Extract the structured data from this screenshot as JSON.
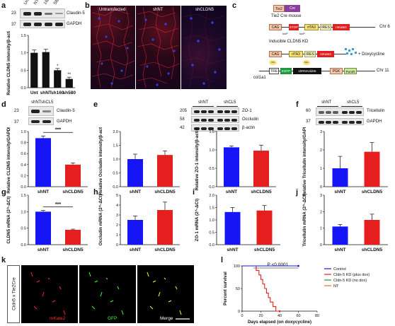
{
  "panels": {
    "a": {
      "label": "a",
      "lanes": [
        "Unt",
        "NT",
        "160",
        "580"
      ],
      "blot_rows": [
        {
          "kda": "23",
          "name": "Claudin-5"
        },
        {
          "kda": "37",
          "name": "GAPDH"
        }
      ]
    },
    "b": {
      "label": "b",
      "images": [
        "Untransfected",
        "shNT",
        "shCLDN5"
      ]
    },
    "c": {
      "label": "c",
      "tie2_text": "Tie2",
      "cre_text": "Cre",
      "header": "Tie2 Cre mouse",
      "row1": [
        "CAG",
        "STOP",
        "rtTA3",
        "IRES",
        "mKate2"
      ],
      "loxp": "loxP",
      "chr6": "Chr 6",
      "kd_header": "Inducible CLDN5 KD",
      "row2": [
        "CAG",
        "rtTA3",
        "IRES",
        "mKate2"
      ],
      "dox": "+ Doxycycline",
      "row3": [
        "TRE",
        "EGFP",
        "shRNAcldn5",
        "PGK",
        "PuroR"
      ],
      "col1a1": "col1a1",
      "chr11": "Chr 11",
      "rtta_bubble": "rtTA",
      "dox_bubble": "Dox"
    },
    "d": {
      "label": "d",
      "lanes": [
        "shNT",
        "shCL5"
      ],
      "blot_rows": [
        {
          "kda": "23",
          "name": "Claudin-5"
        },
        {
          "kda": "37",
          "name": "GAPDH"
        }
      ]
    },
    "e": {
      "label": "e",
      "groups": [
        "shNT",
        "shCL5"
      ],
      "blot_rows": [
        {
          "kda": "205",
          "name": "ZO-1"
        },
        {
          "kda": "58",
          "name": "Occludin"
        },
        {
          "kda": "42",
          "name": "β-actin"
        }
      ]
    },
    "f": {
      "label": "f",
      "groups": [
        "shNT",
        "shCL5"
      ],
      "blot_rows": [
        {
          "kda": "60",
          "name": "Tricellulin"
        },
        {
          "kda": "37",
          "name": "GAPDH"
        }
      ]
    },
    "k": {
      "label": "k",
      "side_label": "Cldn5 x Tie2Cre",
      "images": [
        "mKate2",
        "GFP",
        "Merge"
      ]
    }
  },
  "colors": {
    "blue": "#1515f5",
    "red": "#e51e1e",
    "green": "#1a9a3c"
  },
  "chart_data": [
    {
      "id": "a",
      "type": "bar",
      "categories": [
        "Unt",
        "shNT",
        "sh160",
        "sh580"
      ],
      "values": [
        1.0,
        1.02,
        0.5,
        0.25
      ],
      "errors": [
        0.08,
        0.08,
        0.05,
        0.05
      ],
      "bar_color": "#111111",
      "ylabel": "Relative CLDN5 intensity/β-actin",
      "ylim": [
        0,
        1.5
      ],
      "yticks": [
        "0.0",
        "0.5",
        "1.0",
        "1.5"
      ],
      "sig": [
        "",
        "",
        "*",
        "**"
      ]
    },
    {
      "id": "d",
      "type": "bar",
      "categories": [
        "shNT",
        "shCLDN5"
      ],
      "values": [
        0.88,
        0.4
      ],
      "errors": [
        0.04,
        0.03
      ],
      "colors": [
        "#1515f5",
        "#e51e1e"
      ],
      "ylabel": "Relative CLDN5 intensity/GAPDH",
      "ylim": [
        0,
        1.0
      ],
      "yticks": [
        "0.0",
        "0.2",
        "0.4",
        "0.6",
        "0.8",
        "1.0"
      ],
      "bracket": "***"
    },
    {
      "id": "e1",
      "type": "bar",
      "categories": [
        "shNT",
        "shCLDN5"
      ],
      "values": [
        1.0,
        1.15
      ],
      "errors": [
        0.18,
        0.15
      ],
      "colors": [
        "#1515f5",
        "#e51e1e"
      ],
      "ylabel": "Relative Occludin intensity/β-actin",
      "ylim": [
        0,
        2.0
      ],
      "yticks": [
        "0.0",
        "0.5",
        "1.0",
        "1.5",
        "2.0"
      ]
    },
    {
      "id": "e2",
      "type": "bar",
      "categories": [
        "shNT",
        "shCLDN5"
      ],
      "values": [
        1.07,
        0.98
      ],
      "errors": [
        0.04,
        0.15
      ],
      "colors": [
        "#1515f5",
        "#e51e1e"
      ],
      "ylabel": "Relative ZO-1 intensity/β-actin",
      "ylim": [
        0,
        1.5
      ],
      "yticks": [
        "0.0",
        "0.5",
        "1.0",
        "1.5"
      ]
    },
    {
      "id": "f",
      "type": "bar",
      "categories": [
        "shNT",
        "shCLDN5"
      ],
      "values": [
        1.0,
        1.9
      ],
      "errors": [
        0.65,
        0.5
      ],
      "colors": [
        "#1515f5",
        "#e51e1e"
      ],
      "ylabel": "Relative Tricellulin intensity/GAPDH",
      "ylim": [
        0,
        3
      ],
      "yticks": [
        "0",
        "1",
        "2",
        "3"
      ]
    },
    {
      "id": "g",
      "type": "bar",
      "categories": [
        "shNT",
        "shCLDN5"
      ],
      "values": [
        1.0,
        0.45
      ],
      "errors": [
        0.04,
        0.02
      ],
      "colors": [
        "#1515f5",
        "#e51e1e"
      ],
      "ylabel": "CLDN5 mRNA (2^-ΔCt)",
      "ylim": [
        0,
        1.5
      ],
      "yticks": [
        "0.0",
        "0.5",
        "1.0",
        "1.5"
      ],
      "bracket": "***"
    },
    {
      "id": "h",
      "type": "bar",
      "categories": [
        "shNT",
        "shCLDN5"
      ],
      "values": [
        2.5,
        3.5
      ],
      "errors": [
        0.4,
        0.8
      ],
      "colors": [
        "#1515f5",
        "#e51e1e"
      ],
      "ylabel": "Occludin mRNA (2^-ΔCt)",
      "ylim": [
        0,
        5
      ],
      "yticks": [
        "0",
        "1",
        "2",
        "3",
        "4",
        "5"
      ]
    },
    {
      "id": "i",
      "type": "bar",
      "categories": [
        "shNT",
        "shCLDN5"
      ],
      "values": [
        1.32,
        1.38
      ],
      "errors": [
        0.18,
        0.2
      ],
      "colors": [
        "#1515f5",
        "#e51e1e"
      ],
      "ylabel": "ZO-1 mRNA (2^-ΔCt)",
      "ylim": [
        0,
        2.0
      ],
      "yticks": [
        "0.0",
        "0.5",
        "1.0",
        "1.5",
        "2.0"
      ]
    },
    {
      "id": "j",
      "type": "bar",
      "categories": [
        "shNT",
        "shCLDN5"
      ],
      "values": [
        1.1,
        1.5
      ],
      "errors": [
        0.12,
        0.35
      ],
      "colors": [
        "#1515f5",
        "#e51e1e"
      ],
      "ylabel": "Tricellulin mRNA (2^-ΔCt)",
      "ylim": [
        0,
        3
      ],
      "yticks": [
        "0",
        "1",
        "2",
        "3"
      ]
    },
    {
      "id": "l",
      "type": "line",
      "label": "l",
      "xlabel": "Days elapsed (on doxycycline)",
      "ylabel": "Percent survival",
      "xlim": [
        0,
        80
      ],
      "ylim": [
        0,
        100
      ],
      "xticks": [
        0,
        20,
        40,
        60,
        80
      ],
      "yticks": [
        0,
        50,
        100
      ],
      "pvalue": "P <0.0001",
      "series": [
        {
          "name": "Control",
          "color": "#1515f5",
          "x": [
            0,
            60
          ],
          "y": [
            100,
            100
          ]
        },
        {
          "name": "Cldn-5 KD (plus dox)",
          "color": "#e51e1e",
          "x": [
            0,
            15,
            15,
            18,
            18,
            20,
            20,
            22,
            22,
            24,
            24,
            26,
            26,
            28,
            28,
            30,
            30,
            33,
            33,
            36,
            36,
            40
          ],
          "y": [
            100,
            100,
            90,
            90,
            80,
            80,
            70,
            70,
            60,
            60,
            50,
            50,
            40,
            40,
            30,
            30,
            20,
            20,
            10,
            10,
            0,
            0
          ]
        },
        {
          "name": "Cldn-5 KD (no dox)",
          "color": "#1a9a3c",
          "x": [
            0,
            60
          ],
          "y": [
            100,
            100
          ]
        },
        {
          "name": "NT",
          "color": "#e86a2a",
          "x": [
            0,
            60
          ],
          "y": [
            100,
            100
          ]
        }
      ]
    }
  ]
}
